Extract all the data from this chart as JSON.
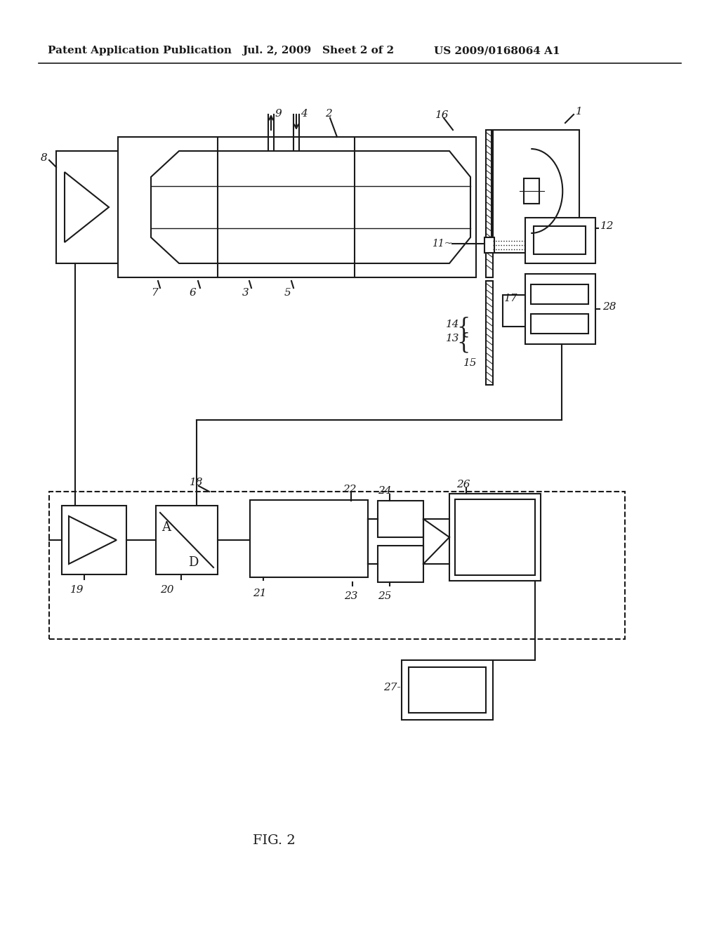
{
  "bg_color": "#ffffff",
  "header_left": "Patent Application Publication",
  "header_mid": "Jul. 2, 2009   Sheet 2 of 2",
  "header_right": "US 2009/0168064 A1",
  "caption": "FIG. 2",
  "lc": "#1a1a1a",
  "lw": 1.5
}
